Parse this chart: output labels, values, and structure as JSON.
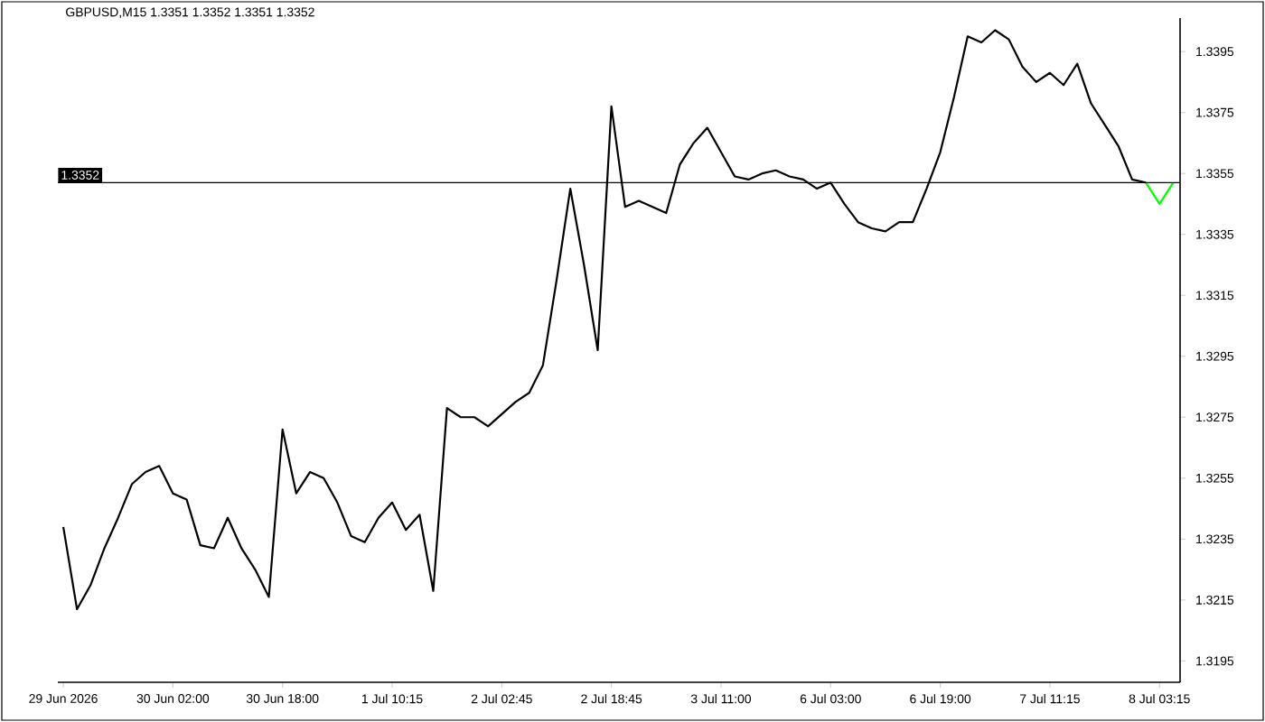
{
  "chart_data": {
    "type": "line",
    "title": "GBPUSD,M15  1.3351 1.3352 1.3351 1.3352",
    "categories": [
      "29 Jun 2026",
      null,
      null,
      null,
      null,
      null,
      null,
      null,
      "30 Jun 02:00",
      null,
      null,
      null,
      null,
      null,
      null,
      null,
      "30 Jun 18:00",
      null,
      null,
      null,
      null,
      null,
      null,
      null,
      "1 Jul 10:15",
      null,
      null,
      null,
      null,
      null,
      null,
      null,
      "2 Jul 02:45",
      null,
      null,
      null,
      null,
      null,
      null,
      null,
      "2 Jul 18:45",
      null,
      null,
      null,
      null,
      null,
      null,
      null,
      "3 Jul 11:00",
      null,
      null,
      null,
      null,
      null,
      null,
      null,
      "6 Jul 03:00",
      null,
      null,
      null,
      null,
      null,
      null,
      null,
      "6 Jul 19:00",
      null,
      null,
      null,
      null,
      null,
      null,
      null,
      "7 Jul 11:15",
      null,
      null,
      null,
      null,
      null,
      null,
      null,
      "8 Jul 03:15",
      null
    ],
    "series": [
      {
        "color": "#000000",
        "values": [
          1.3239,
          1.3212,
          1.322,
          1.3232,
          1.3242,
          1.3253,
          1.3257,
          1.3259,
          1.325,
          1.3248,
          1.3233,
          1.3232,
          1.3242,
          1.3232,
          1.3225,
          1.3216,
          1.3271,
          1.325,
          1.3257,
          1.3255,
          1.3247,
          1.3236,
          1.3234,
          1.3242,
          1.3247,
          1.3238,
          1.3243,
          1.3218,
          1.3278,
          1.3275,
          1.3275,
          1.3272,
          1.3276,
          1.328,
          1.3283,
          1.3292,
          1.332,
          1.335,
          1.3325,
          1.3297,
          1.3377,
          1.3344,
          1.3346,
          1.3344,
          1.3342,
          1.3358,
          1.3365,
          1.337,
          1.3362,
          1.3354,
          1.3353,
          1.3355,
          1.3356,
          1.3354,
          1.3353,
          1.335,
          1.3352,
          1.3345,
          1.3339,
          1.3337,
          1.3336,
          1.3339,
          1.3339,
          1.335,
          1.3362,
          1.338,
          1.34,
          1.3398,
          1.3402,
          1.3399,
          1.339,
          1.3385,
          1.3388,
          1.3384,
          1.3391,
          1.3378,
          1.3371,
          1.3364,
          1.3353,
          1.3352,
          null,
          null
        ]
      },
      {
        "color": "#00ff00",
        "values": [
          null,
          null,
          null,
          null,
          null,
          null,
          null,
          null,
          null,
          null,
          null,
          null,
          null,
          null,
          null,
          null,
          null,
          null,
          null,
          null,
          null,
          null,
          null,
          null,
          null,
          null,
          null,
          null,
          null,
          null,
          null,
          null,
          null,
          null,
          null,
          null,
          null,
          null,
          null,
          null,
          null,
          null,
          null,
          null,
          null,
          null,
          null,
          null,
          null,
          null,
          null,
          null,
          null,
          null,
          null,
          null,
          null,
          null,
          null,
          null,
          null,
          null,
          null,
          null,
          null,
          null,
          null,
          null,
          null,
          null,
          null,
          null,
          null,
          null,
          null,
          null,
          null,
          null,
          null,
          1.3352,
          1.3345,
          1.3352
        ]
      }
    ],
    "ylim": [
      1.3188,
      1.3406
    ],
    "yticks": [
      1.3195,
      1.3215,
      1.3235,
      1.3255,
      1.3275,
      1.3295,
      1.3315,
      1.3335,
      1.3355,
      1.3375,
      1.3395
    ],
    "ref_lines": [
      {
        "axis": "y",
        "value": 1.3352,
        "label": "1.3352",
        "color": "#000000"
      }
    ],
    "grid": false
  }
}
